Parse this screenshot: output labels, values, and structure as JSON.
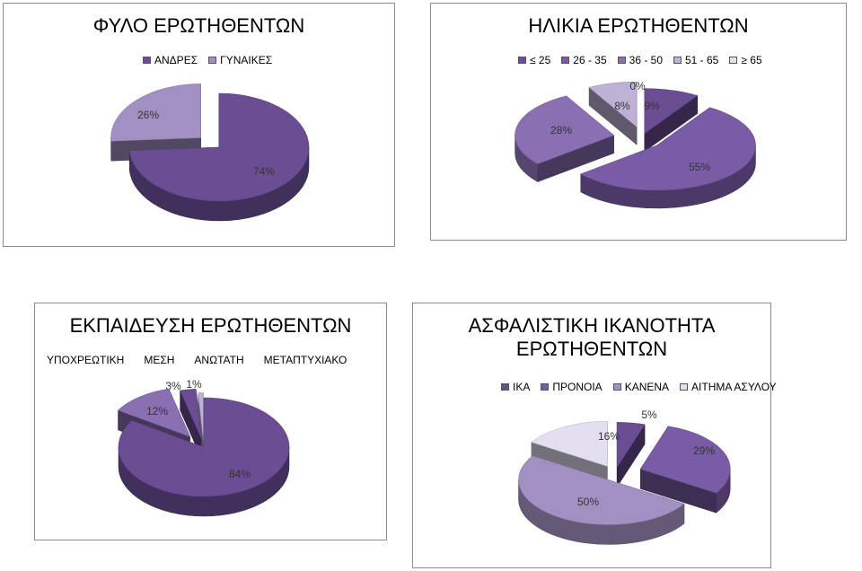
{
  "colors": {
    "c1": "#6b4d94",
    "c2": "#8a6fb3",
    "c3": "#a390c2",
    "c4": "#beb1d6",
    "c5": "#e4dff0",
    "dark": "#3a3045"
  },
  "chart_data": [
    {
      "type": "pie",
      "title": "ΦΥΛΟ ΕΡΩΤΗΘΕΝΤΩΝ",
      "categories": [
        "ΑΝΔΡΕΣ",
        "ΓΥΝΑΙΚΕΣ"
      ],
      "values": [
        74,
        26
      ],
      "data_labels": [
        "74%",
        "26%"
      ],
      "legend": "top"
    },
    {
      "type": "pie",
      "title": "ΗΛΙΚΙΑ ΕΡΩΤΗΘΕΝΤΩΝ",
      "categories": [
        "≤ 25",
        "26 - 35",
        "36 - 50",
        "51 - 65",
        "≥ 65"
      ],
      "values": [
        9,
        55,
        28,
        8,
        0
      ],
      "data_labels": [
        "9%",
        "55%",
        "28%",
        "8%",
        "0%"
      ],
      "legend": "top"
    },
    {
      "type": "pie",
      "title": "ΕΚΠΑΙΔΕΥΣΗ ΕΡΩΤΗΘΕΝΤΩΝ",
      "categories": [
        "ΥΠΟΧΡΕΩΤΙΚΗ",
        "ΜΕΣΗ",
        "ΑΝΩΤΑΤΗ",
        "ΜΕΤΑΠΤΥΧΙΑΚΟ"
      ],
      "values": [
        84,
        12,
        3,
        1
      ],
      "data_labels": [
        "84%",
        "12%",
        "3%",
        "1%"
      ],
      "legend": "top"
    },
    {
      "type": "pie",
      "title": "ΑΣΦΑΛΙΣΤΙΚΗ ΙΚΑΝΟΤΗΤΑ ΕΡΩΤΗΘΕΝΤΩΝ",
      "categories": [
        "ΙΚΑ",
        "ΠΡΟΝΟΙΑ",
        "ΚΑΝΕΝΑ",
        "ΑΙΤΗΜΑ ΑΣΥΛΟΥ"
      ],
      "values": [
        5,
        29,
        50,
        16
      ],
      "data_labels": [
        "5%",
        "29%",
        "50%",
        "16%"
      ],
      "legend": "top"
    }
  ]
}
